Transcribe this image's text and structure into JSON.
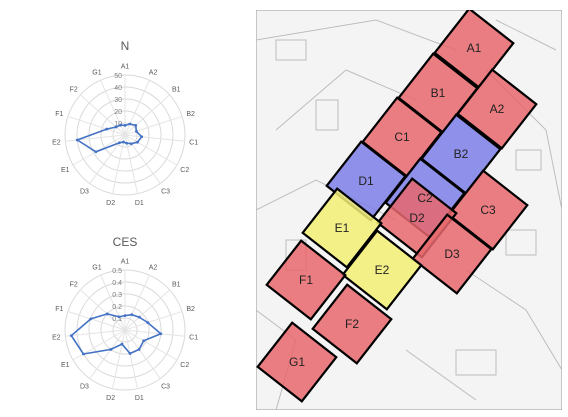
{
  "chart_data": [
    {
      "type": "radar",
      "title": "N",
      "axes": [
        "A1",
        "A2",
        "B1",
        "B2",
        "C1",
        "C2",
        "C3",
        "D1",
        "D2",
        "D3",
        "E1",
        "E2",
        "F1",
        "F2",
        "G1"
      ],
      "ticks": [
        10,
        20,
        30,
        40,
        50
      ],
      "rmax": 50,
      "series": [
        {
          "color": "#4472c4",
          "values": [
            8,
            10,
            12,
            10,
            14,
            12,
            9,
            7,
            6,
            8,
            28,
            40,
            16,
            10,
            9
          ]
        }
      ]
    },
    {
      "type": "radar",
      "title": "CES",
      "axes": [
        "A1",
        "A2",
        "B1",
        "B2",
        "C1",
        "C2",
        "C3",
        "D1",
        "D2",
        "D3",
        "E1",
        "E2",
        "F1",
        "F2",
        "G1"
      ],
      "ticks": [
        0.1,
        0.2,
        0.3,
        0.4,
        0.5
      ],
      "tick_labels": [
        "0.1",
        "0.2",
        "0.3",
        "0.4",
        "0.5"
      ],
      "rmax": 0.5,
      "series": [
        {
          "color": "#4472c4",
          "values": [
            0.12,
            0.14,
            0.16,
            0.2,
            0.3,
            0.18,
            0.2,
            0.2,
            0.12,
            0.2,
            0.4,
            0.45,
            0.3,
            0.2,
            0.12
          ]
        }
      ]
    },
    {
      "type": "grid-map",
      "cells": [
        {
          "label": "A1",
          "color": "#e8676c"
        },
        {
          "label": "A2",
          "color": "#e8676c"
        },
        {
          "label": "B1",
          "color": "#e8676c"
        },
        {
          "label": "B2",
          "color": "#7b7ee6"
        },
        {
          "label": "C1",
          "color": "#e8676c"
        },
        {
          "label": "C2",
          "color": "#7b7ee6"
        },
        {
          "label": "C3",
          "color": "#e8676c"
        },
        {
          "label": "D1",
          "color": "#7b7ee6"
        },
        {
          "label": "D2",
          "color": "#e8676c"
        },
        {
          "label": "D3",
          "color": "#e8676c"
        },
        {
          "label": "E1",
          "color": "#f3ef74"
        },
        {
          "label": "E2",
          "color": "#f3ef74"
        },
        {
          "label": "F1",
          "color": "#e8676c"
        },
        {
          "label": "F2",
          "color": "#e8676c"
        },
        {
          "label": "G1",
          "color": "#e8676c"
        }
      ]
    }
  ]
}
